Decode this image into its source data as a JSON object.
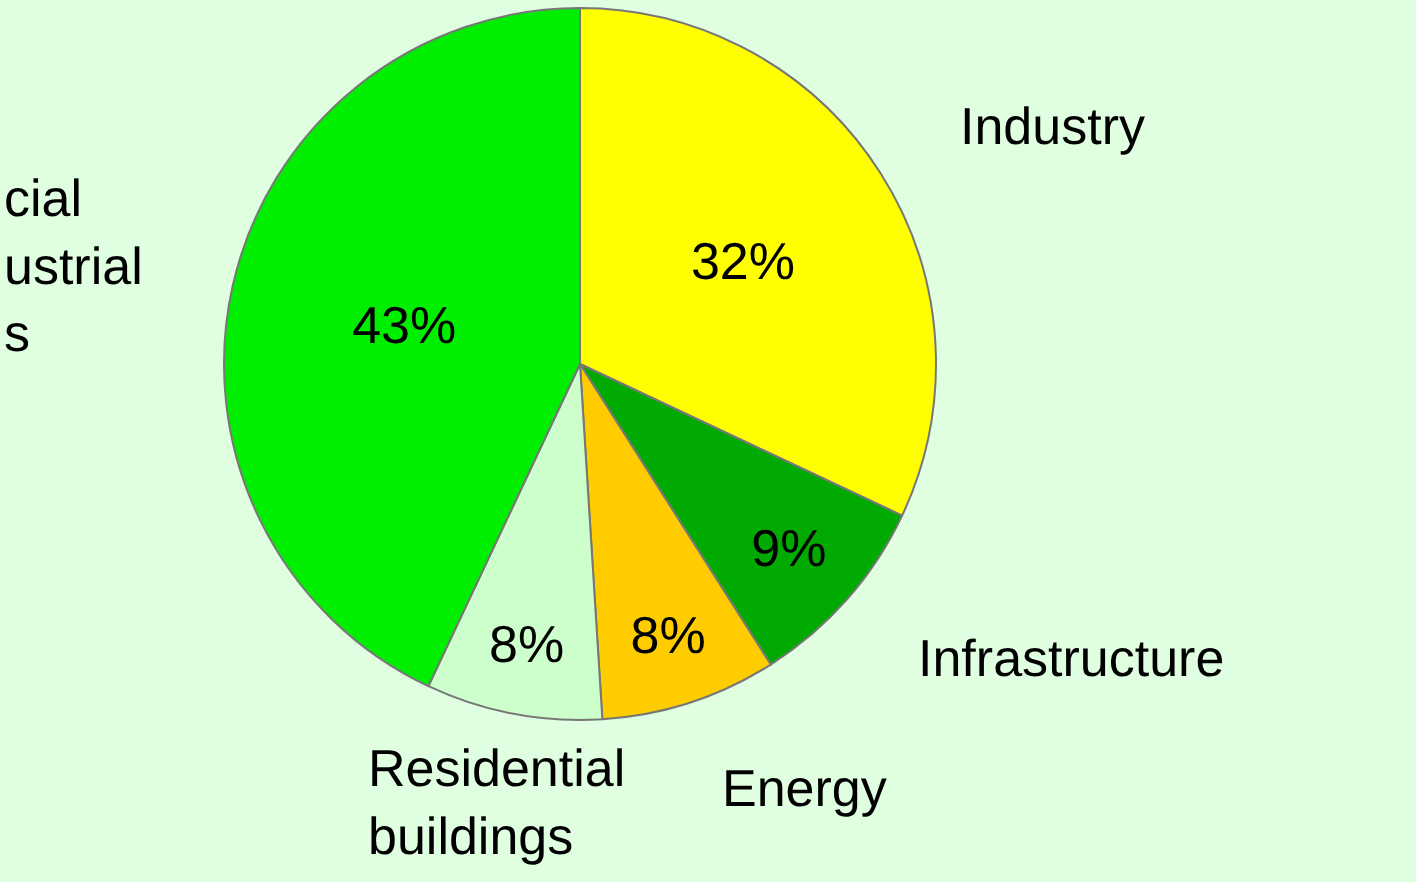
{
  "chart_data": {
    "type": "pie",
    "categories": [
      "Industry",
      "Infrastructure",
      "Energy",
      "Residential buildings",
      "cial ustrial s"
    ],
    "values": [
      32,
      9,
      8,
      8,
      43
    ],
    "value_labels": [
      "32%",
      "9%",
      "8%",
      "8%",
      "43%"
    ],
    "colors": [
      "#ffff00",
      "#00aa00",
      "#ffcc00",
      "#ccffcc",
      "#00ee00"
    ],
    "legend": false
  }
}
